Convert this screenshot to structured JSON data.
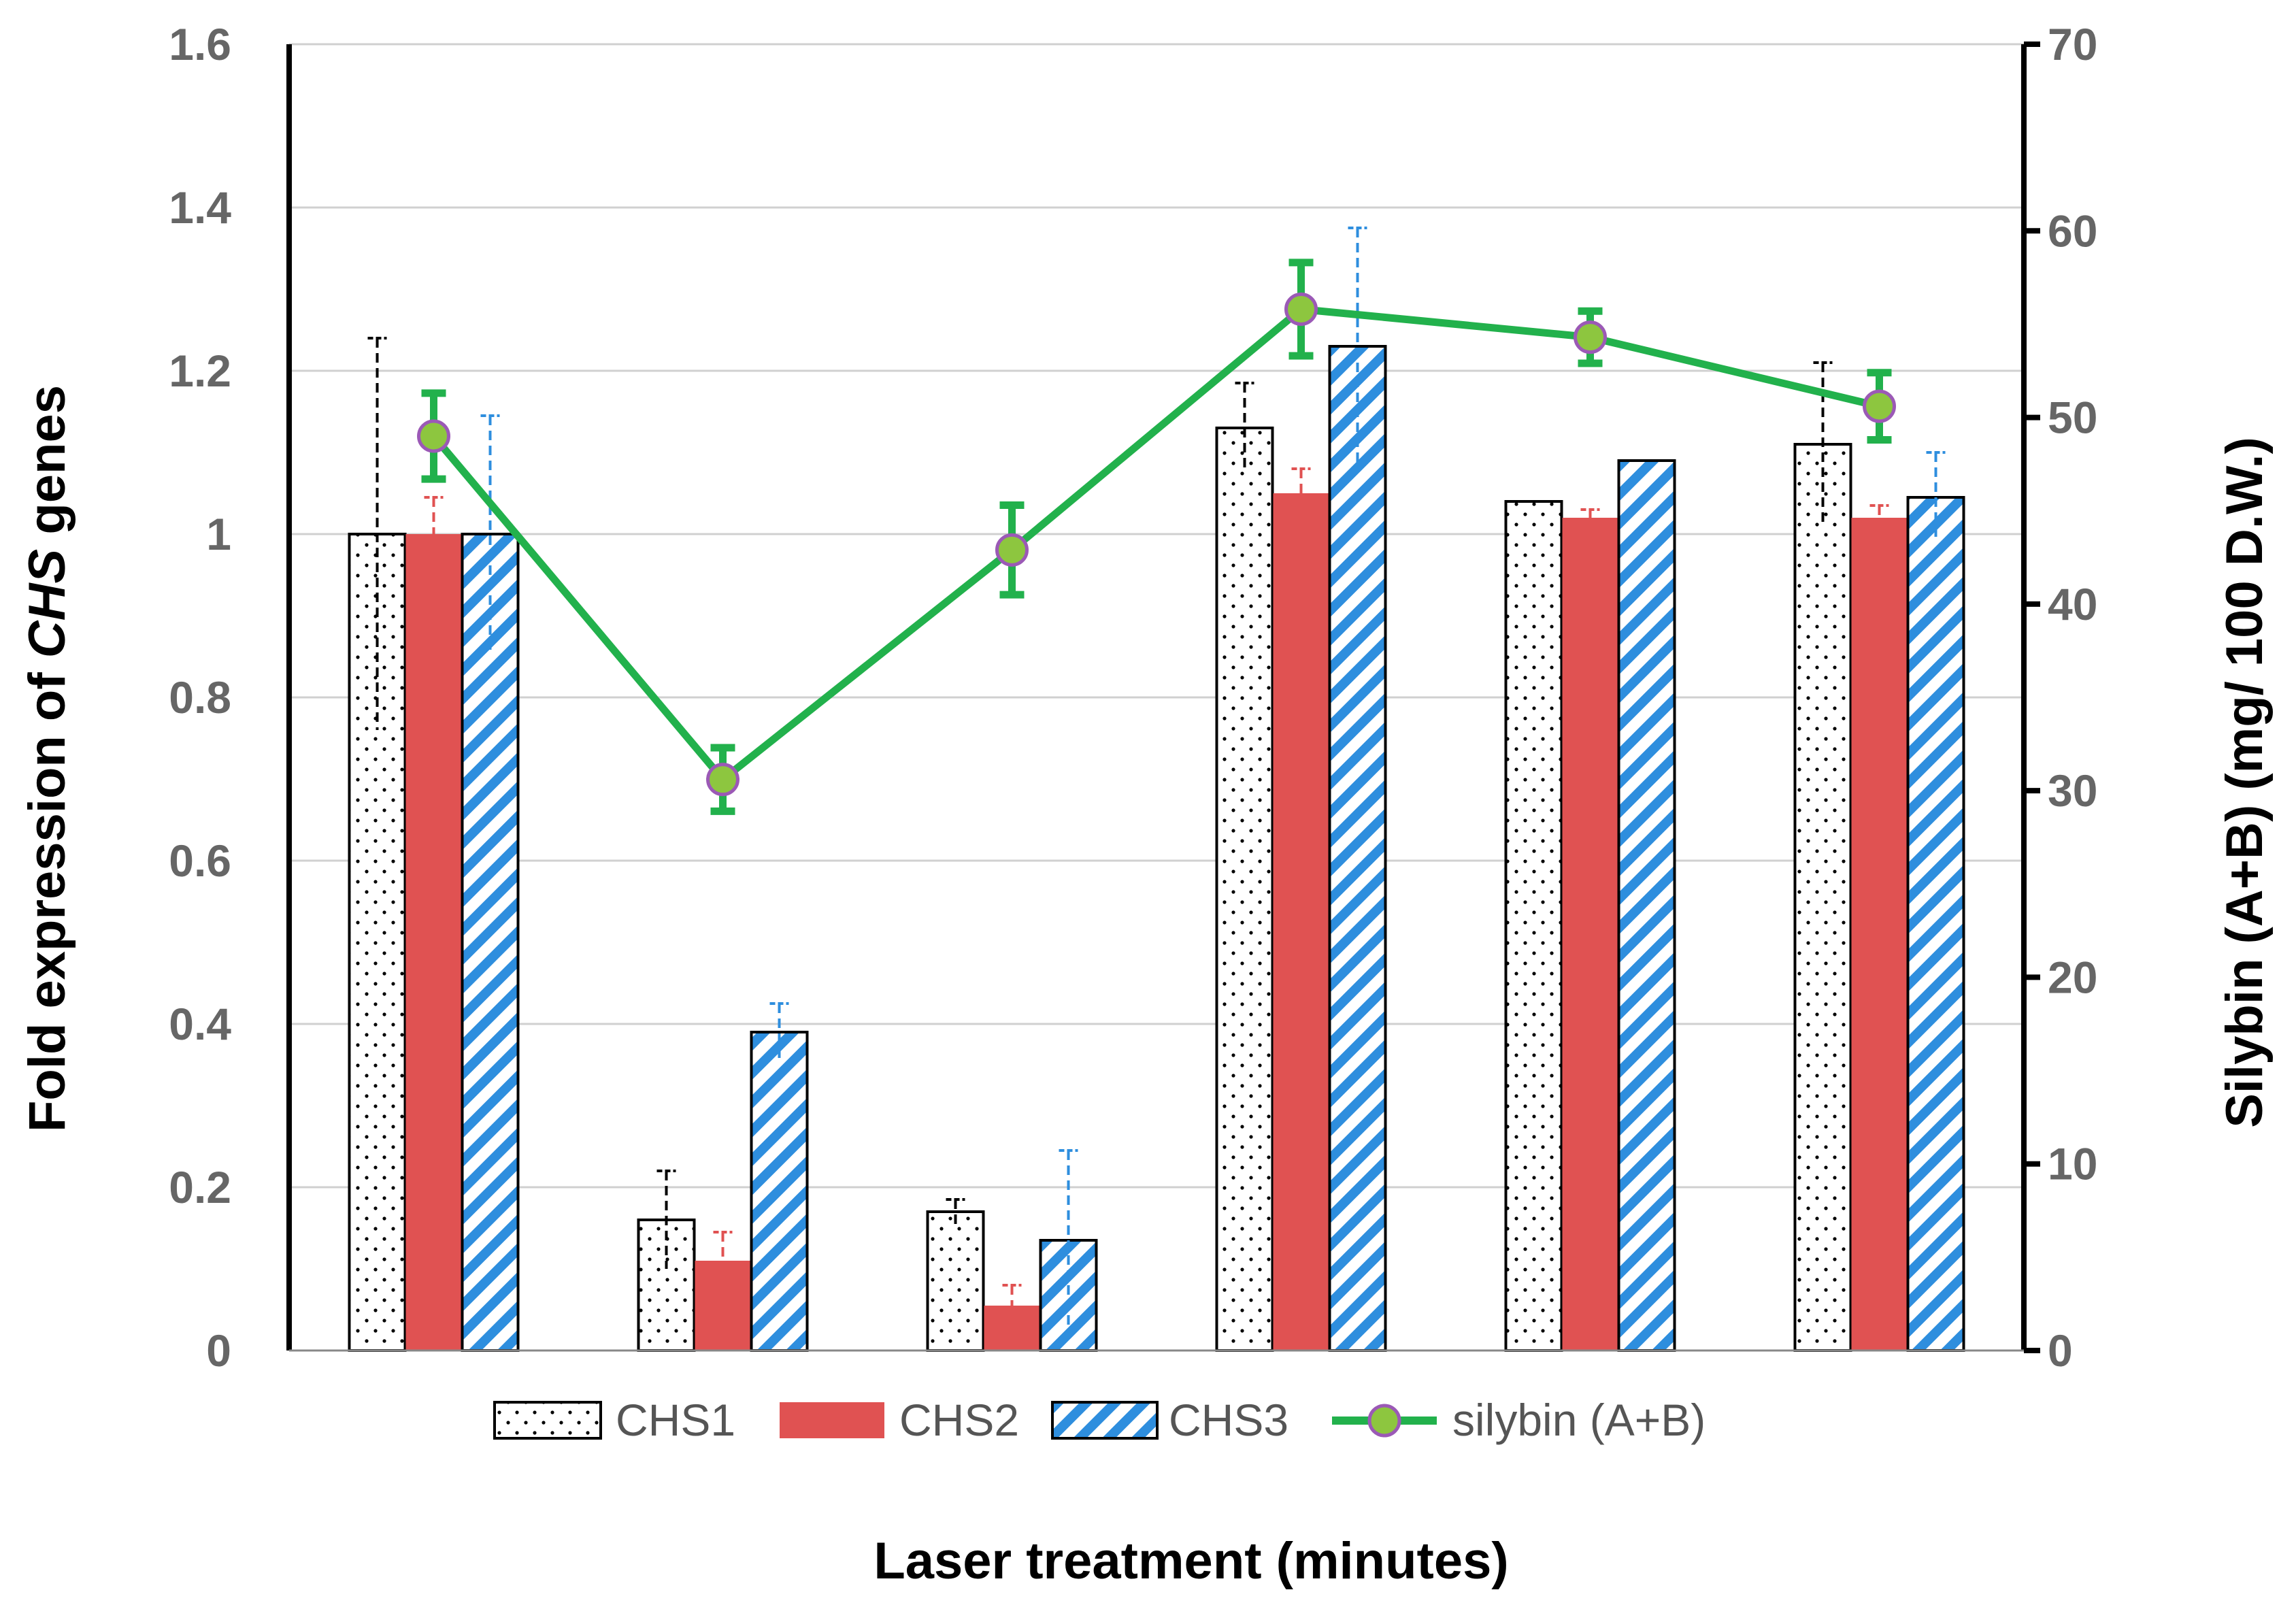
{
  "chart_data": {
    "type": "bar",
    "title": "",
    "xlabel": "Laser treatment (minutes)",
    "ylabel": "Fold expression of CHS genes",
    "ylabel_parts": {
      "before": "Fold expression of ",
      "italic": "CHS",
      "after": " genes"
    },
    "y2label": "Silybin (A+B) (mg/ 100 D.W.)",
    "ylim": [
      0,
      1.6
    ],
    "y2lim": [
      0,
      70
    ],
    "yticks": [
      "0",
      "0.2",
      "0.4",
      "0.6",
      "0.8",
      "1",
      "1.2",
      "1.4",
      "1.6"
    ],
    "y2ticks": [
      "0",
      "10",
      "20",
      "30",
      "40",
      "50",
      "60",
      "70"
    ],
    "grid": true,
    "legend_position": "bottom",
    "categories": [
      "",
      "",
      "",
      "",
      "",
      ""
    ],
    "series": [
      {
        "name": "CHS1",
        "type": "bar",
        "axis": "left",
        "color": "#000000",
        "pattern": "dots",
        "values": [
          1.0,
          0.16,
          0.17,
          1.13,
          1.04,
          1.11
        ],
        "errors": [
          0.24,
          0.06,
          0.015,
          0.055,
          0.0,
          0.1
        ]
      },
      {
        "name": "CHS2",
        "type": "bar",
        "axis": "left",
        "color": "#e05252",
        "pattern": "solid",
        "values": [
          1.0,
          0.11,
          0.055,
          1.05,
          1.02,
          1.02
        ],
        "errors": [
          0.045,
          0.035,
          0.025,
          0.03,
          0.01,
          0.015
        ]
      },
      {
        "name": "CHS3",
        "type": "bar",
        "axis": "left",
        "color": "#2e8ede",
        "pattern": "stripes",
        "values": [
          1.0,
          0.39,
          0.135,
          1.23,
          1.09,
          1.045
        ],
        "errors": [
          0.145,
          0.035,
          0.11,
          0.145,
          0.0,
          0.055
        ]
      },
      {
        "name": "silybin (A+B)",
        "type": "line",
        "axis": "right",
        "color": "#22b14c",
        "marker_color": "#8dc63f",
        "marker_edge": "#9b59b6",
        "values": [
          49.0,
          30.6,
          42.9,
          55.8,
          54.3,
          50.6
        ],
        "errors": [
          2.3,
          1.7,
          2.4,
          2.5,
          1.4,
          1.8
        ]
      }
    ]
  }
}
